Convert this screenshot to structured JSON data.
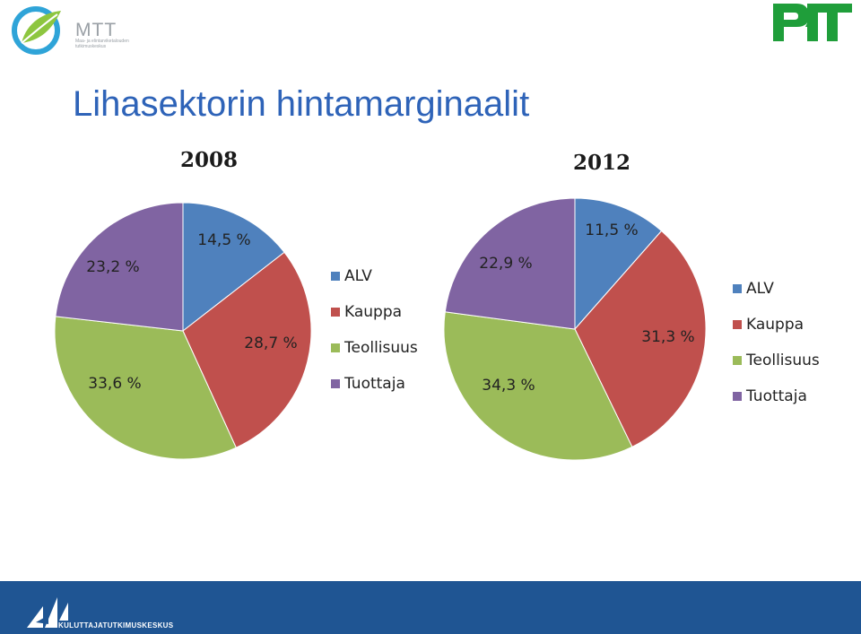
{
  "logos": {
    "mtt_text": "MTT",
    "mtt_sub": "Maa- ja elintarviketalouden tutkimuskeskus",
    "ptt_icon": "ptt-logo-icon",
    "footer_icon": "sail-logo-icon",
    "footer_text": "KULUTTAJATUTKIMUSKESKUS"
  },
  "slide": {
    "title": "Lihasektorin hintamarginaalit"
  },
  "colors": {
    "ALV": "#4f81bd",
    "Kauppa": "#c0504d",
    "Teollisuus": "#9bbb59",
    "Tuottaja": "#8064a2",
    "footer": "#1f5593",
    "title": "#2e63b8"
  },
  "chart_data": [
    {
      "type": "pie",
      "title": "2008",
      "categories": [
        "ALV",
        "Kauppa",
        "Teollisuus",
        "Tuottaja"
      ],
      "values": [
        14.5,
        28.7,
        33.6,
        23.2
      ],
      "labels": [
        "14,5 %",
        "28,7 %",
        "33,6 %",
        "23,2 %"
      ],
      "legend": [
        "ALV",
        "Kauppa",
        "Teollisuus",
        "Tuottaja"
      ],
      "legend_position": "right"
    },
    {
      "type": "pie",
      "title": "2012",
      "categories": [
        "ALV",
        "Kauppa",
        "Teollisuus",
        "Tuottaja"
      ],
      "values": [
        11.5,
        31.3,
        34.3,
        22.9
      ],
      "labels": [
        "11,5 %",
        "31,3 %",
        "34,3 %",
        "22,9 %"
      ],
      "legend": [
        "ALV",
        "Kauppa",
        "Teollisuus",
        "Tuottaja"
      ],
      "legend_position": "right"
    }
  ]
}
